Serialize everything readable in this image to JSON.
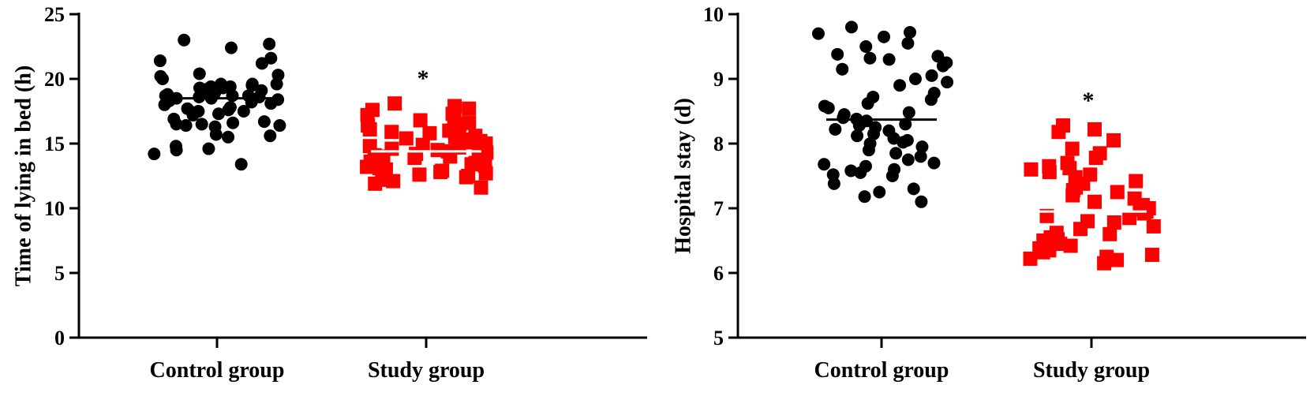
{
  "chart_data": [
    {
      "type": "scatter",
      "subtype": "dot-plot",
      "ylabel": "Time of lying in bed (h)",
      "xlabel": "",
      "ylim": [
        0,
        25
      ],
      "yticks": [
        0,
        5,
        10,
        15,
        20,
        25
      ],
      "categories": [
        "Control group",
        "Study group"
      ],
      "grid": false,
      "significance_mark": "*",
      "significance_on": "Study group",
      "series": [
        {
          "category": "Control group",
          "marker": "circle",
          "color": "#000000",
          "mean": 18.5,
          "values": [
            23.0,
            22.7,
            22.4,
            21.6,
            21.4,
            21.2,
            20.4,
            20.2,
            20.0,
            20.3,
            19.6,
            19.6,
            19.4,
            19.3,
            19.4,
            19.5,
            19.6,
            19.2,
            19.0,
            19.1,
            19.3,
            18.9,
            18.7,
            18.7,
            18.6,
            18.6,
            18.5,
            18.4,
            18.3,
            18.5,
            18.7,
            18.8,
            18.6,
            18.7,
            18.2,
            18.0,
            17.8,
            18.1,
            17.7,
            17.6,
            17.5,
            17.4,
            17.3,
            17.5,
            17.2,
            16.9,
            16.7,
            16.6,
            16.5,
            16.4,
            16.3,
            16.5,
            16.4,
            15.6,
            15.5,
            15.7,
            14.8,
            14.6,
            14.5,
            14.2,
            13.4
          ]
        },
        {
          "category": "Study group",
          "marker": "square",
          "color": "#ff0000",
          "mean": 14.4,
          "values": [
            18.1,
            17.9,
            17.7,
            17.6,
            17.3,
            17.2,
            17.0,
            16.8,
            16.6,
            16.5,
            16.4,
            16.3,
            16.2,
            16.1,
            16.0,
            15.9,
            15.8,
            15.6,
            15.5,
            15.4,
            15.3,
            15.2,
            15.1,
            15.0,
            14.9,
            14.8,
            14.8,
            14.7,
            14.6,
            14.5,
            14.4,
            14.4,
            14.3,
            14.2,
            14.1,
            14.0,
            14.0,
            13.9,
            13.8,
            13.7,
            13.6,
            13.5,
            13.4,
            13.3,
            13.2,
            13.1,
            13.0,
            12.9,
            12.8,
            12.7,
            12.6,
            12.5,
            12.4,
            12.3,
            12.2,
            12.1,
            11.9,
            11.6
          ]
        }
      ]
    },
    {
      "type": "scatter",
      "subtype": "dot-plot",
      "ylabel": "Hospital stay (d)",
      "xlabel": "",
      "ylim": [
        5,
        10
      ],
      "yticks": [
        5,
        6,
        7,
        8,
        9,
        10
      ],
      "categories": [
        "Control group",
        "Study group"
      ],
      "grid": false,
      "significance_mark": "*",
      "significance_on": "Study group",
      "series": [
        {
          "category": "Control group",
          "marker": "circle",
          "color": "#000000",
          "mean": 8.37,
          "values": [
            9.8,
            9.72,
            9.7,
            9.65,
            9.55,
            9.5,
            9.38,
            9.35,
            9.32,
            9.3,
            9.25,
            9.2,
            9.15,
            9.05,
            9.0,
            8.95,
            8.9,
            8.78,
            8.72,
            8.68,
            8.62,
            8.58,
            8.55,
            8.48,
            8.45,
            8.4,
            8.38,
            8.35,
            8.3,
            8.28,
            8.25,
            8.22,
            8.2,
            8.15,
            8.12,
            8.08,
            8.05,
            8.02,
            8.0,
            7.95,
            7.9,
            7.85,
            7.8,
            7.75,
            7.7,
            7.68,
            7.65,
            7.6,
            7.58,
            7.55,
            7.52,
            7.5,
            7.38,
            7.3,
            7.25,
            7.18,
            7.1
          ]
        },
        {
          "category": "Study group",
          "marker": "square",
          "color": "#ff0000",
          "mean": 6.95,
          "values": [
            8.28,
            8.22,
            8.18,
            8.05,
            7.92,
            7.85,
            7.78,
            7.7,
            7.65,
            7.62,
            7.6,
            7.56,
            7.52,
            7.48,
            7.42,
            7.38,
            7.32,
            7.28,
            7.25,
            7.2,
            7.15,
            7.1,
            7.05,
            7.0,
            6.98,
            6.95,
            6.92,
            6.88,
            6.85,
            6.8,
            6.78,
            6.72,
            6.68,
            6.62,
            6.6,
            6.55,
            6.52,
            6.5,
            6.45,
            6.42,
            6.38,
            6.35,
            6.32,
            6.28,
            6.25,
            6.22,
            6.2,
            6.15
          ]
        }
      ]
    }
  ]
}
